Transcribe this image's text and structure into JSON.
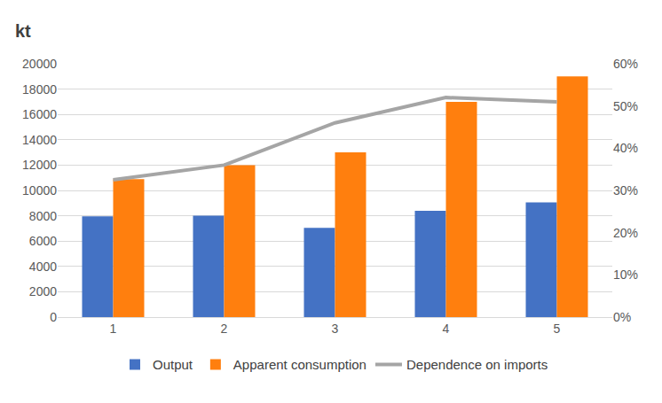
{
  "chart_data": {
    "type": "bar",
    "ylabel": "kt",
    "categories": [
      "1",
      "2",
      "3",
      "4",
      "5"
    ],
    "series": [
      {
        "name": "Output",
        "type": "bar",
        "color": "#4472c4",
        "values": [
          7950,
          8000,
          7050,
          8400,
          9050
        ]
      },
      {
        "name": "Apparent consumption",
        "type": "bar",
        "color": "#ff7f0e",
        "values": [
          10900,
          12000,
          13000,
          17000,
          19000
        ]
      },
      {
        "name": "Dependence on imports",
        "type": "line",
        "axis": "y2",
        "color": "#a5a5a5",
        "values": [
          32.5,
          36,
          46,
          52,
          51
        ]
      }
    ],
    "ylim": [
      0,
      20000
    ],
    "yticks": [
      0,
      2000,
      4000,
      6000,
      8000,
      10000,
      12000,
      14000,
      16000,
      18000,
      20000
    ],
    "y2lim": [
      0,
      60
    ],
    "y2ticks": [
      {
        "value": 0,
        "label": "0%"
      },
      {
        "value": 10,
        "label": "10%"
      },
      {
        "value": 20,
        "label": "20%"
      },
      {
        "value": 30,
        "label": "30%"
      },
      {
        "value": 40,
        "label": "40%"
      },
      {
        "value": 50,
        "label": "50%"
      },
      {
        "value": 60,
        "label": "60%"
      }
    ],
    "grid": true,
    "legend": "bottom"
  }
}
